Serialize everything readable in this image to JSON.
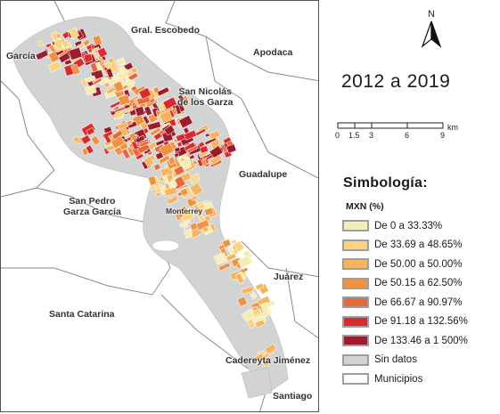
{
  "north_label": "N",
  "period": "2012 a 2019",
  "scale": {
    "labels": [
      "0",
      "1.5",
      "3",
      "6",
      "9"
    ],
    "unit": "km"
  },
  "legend": {
    "title": "Simbología:",
    "subtitle": "MXN (%)",
    "items": [
      {
        "label": "De 0 a 33.33%",
        "color": "#f6eeb0"
      },
      {
        "label": "De 33.69 a 48.65%",
        "color": "#fbd37d"
      },
      {
        "label": "De 50.00 a 50.00%",
        "color": "#f8b45c"
      },
      {
        "label": "De 50.15 a 62.50%",
        "color": "#f0923f"
      },
      {
        "label": "De 66.67 a 90.97%",
        "color": "#e8683a"
      },
      {
        "label": "De 91.18 a 132.56%",
        "color": "#d92b2b"
      },
      {
        "label": "De 133.46 a 1 500%",
        "color": "#9e1b2e"
      },
      {
        "label": "Sin datos",
        "color": "#d2d4d3"
      },
      {
        "label": "Municipios",
        "color": "#ffffff"
      }
    ]
  },
  "municipalities": [
    {
      "name": "Gral. Escobedo"
    },
    {
      "name": "García"
    },
    {
      "name": "Apodaca"
    },
    {
      "name": "San Nicolás\nde los Garza"
    },
    {
      "name": "Guadalupe"
    },
    {
      "name": "San Pedro\nGarza García"
    },
    {
      "name": "Monterrey"
    },
    {
      "name": "Juárez"
    },
    {
      "name": "Santa Catarina"
    },
    {
      "name": "Cadereyta Jiménez"
    },
    {
      "name": "Santiago"
    }
  ]
}
